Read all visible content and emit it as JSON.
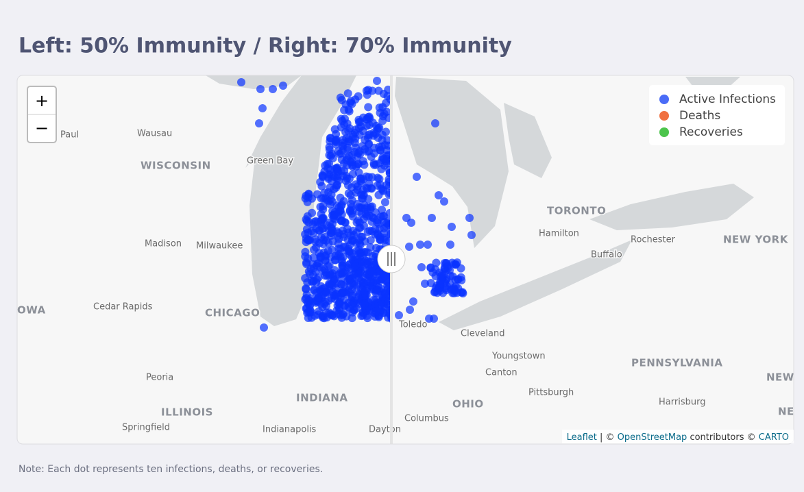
{
  "header": {
    "title": "Left: 50% Immunity / Right: 70% Immunity"
  },
  "zoom": {
    "in": "+",
    "out": "−"
  },
  "legend": [
    {
      "label": "Active Infections",
      "color": "#4a6cf7"
    },
    {
      "label": "Deaths",
      "color": "#f07040"
    },
    {
      "label": "Recoveries",
      "color": "#4cc44c"
    }
  ],
  "map_labels": [
    "Paul",
    "Wausau",
    "WISCONSIN",
    "Green Bay",
    "Madison",
    "Milwaukee",
    "OWA",
    "Cedar Rapids",
    "CHICAGO",
    "Peoria",
    "ILLINOIS",
    "Springfield",
    "INDIANA",
    "Indianapolis",
    "Dayton",
    "Toledo",
    "Cleveland",
    "Youngstown",
    "Canton",
    "Pittsburgh",
    "OHIO",
    "Columbus",
    "PENNSYLVANIA",
    "Harrisburg",
    "TORONTO",
    "Hamilton",
    "Rochester",
    "Buffalo",
    "NEW YORK",
    "NEW",
    "NE"
  ],
  "attribution": [
    "Leaflet",
    " | © ",
    "OpenStreetMap",
    " contributors © ",
    "CARTO"
  ],
  "note": "Note: Each dot represents ten infections, deaths, or recoveries."
}
